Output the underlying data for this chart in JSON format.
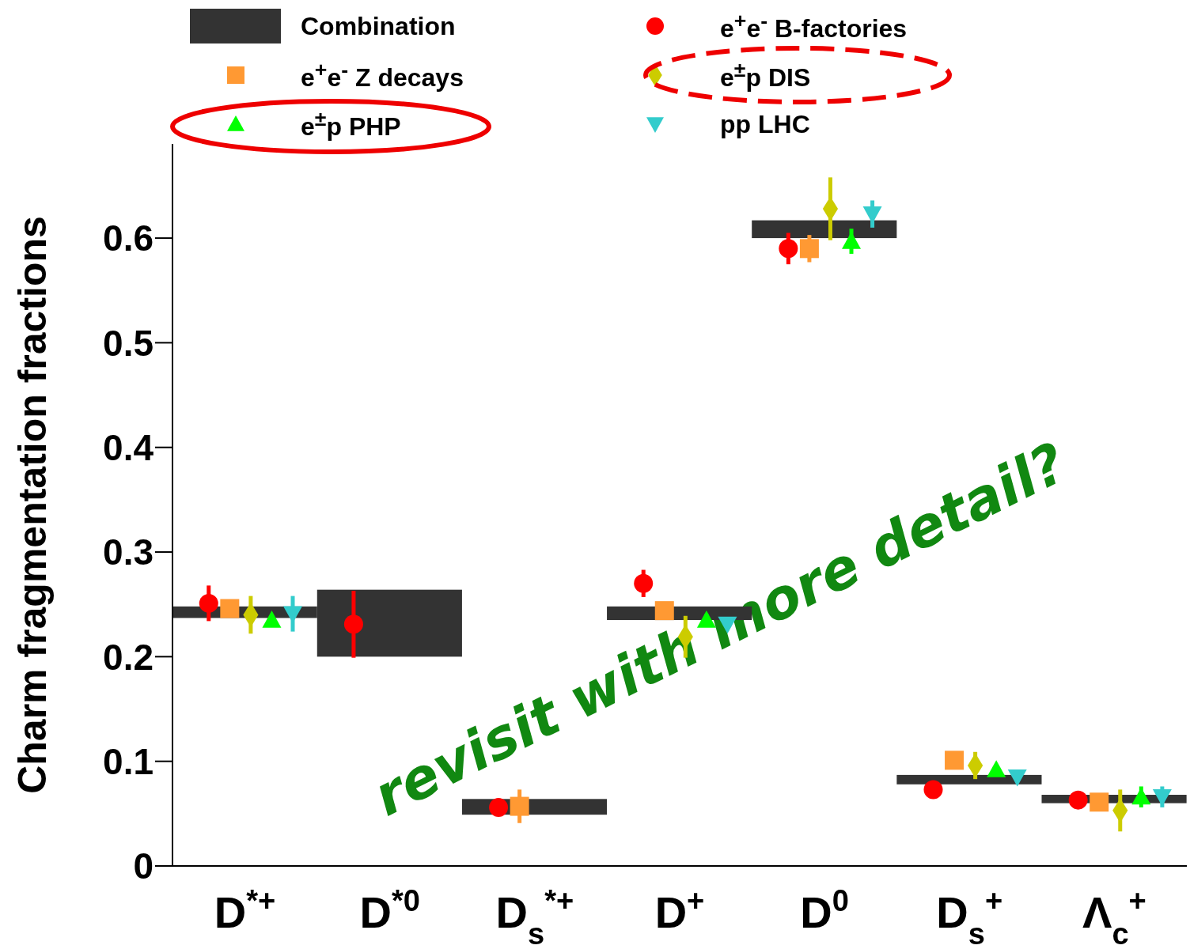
{
  "chart_data": {
    "type": "bar",
    "ylabel": "Charm fragmentation fractions",
    "categories": [
      "D$^{*+}$",
      "D$^{*0}$",
      "D$_{s}$$^{*+}$",
      "D$^{+}$",
      "D$^{0}$",
      "D$_{s}$$^{+}$",
      "Λ$_{c}$$^{+}$"
    ],
    "series": [
      {
        "name": "Combination",
        "color": "#333333",
        "base": [
          0.237,
          0.2,
          0.049,
          0.235,
          0.6,
          0.078,
          0.06
        ],
        "values": [
          0.011,
          0.064,
          0.015,
          0.013,
          0.017,
          0.009,
          0.008
        ]
      },
      {
        "name": "e$^{+}$e$^{-}$ B-factories",
        "type": "scatter",
        "marker": "circle",
        "color": "#ff0000",
        "x": [
          "D$^{*+}$",
          "D$^{*0}$",
          "D$_{s}$$^{*+}$",
          "D$^{+}$",
          "D$^{0}$",
          "D$_{s}$$^{+}$",
          "Λ$_{c}$$^{+}$"
        ],
        "values": [
          0.251,
          0.231,
          0.056,
          0.27,
          0.59,
          0.073,
          0.063
        ],
        "errors": [
          0.017,
          0.032,
          0.004,
          0.013,
          0.015,
          0.004,
          0.004
        ]
      },
      {
        "name": "e$^{+}$e$^{-}$ Z decays",
        "type": "scatter",
        "marker": "square",
        "color": "#ff9933",
        "x": [
          "D$^{*+}$",
          "D$^{*0}$",
          "D$_{s}$$^{*+}$",
          "D$^{+}$",
          "D$^{0}$",
          "D$_{s}$$^{+}$",
          "Λ$_{c}$$^{+}$"
        ],
        "values": [
          0.246,
          null,
          0.057,
          0.244,
          0.59,
          0.101,
          0.061
        ],
        "errors": [
          0.005,
          null,
          0.016,
          0.006,
          0.013,
          0.005,
          0.005
        ]
      },
      {
        "name": "e$^{±}$p DIS",
        "type": "scatter",
        "marker": "diamond",
        "color": "#cccc00",
        "x": [
          "D$^{*+}$",
          "D$^{*0}$",
          "D$_{s}$$^{*+}$",
          "D$^{+}$",
          "D$^{0}$",
          "D$_{s}$$^{+}$",
          "Λ$_{c}$$^{+}$"
        ],
        "values": [
          0.24,
          null,
          null,
          0.219,
          0.628,
          0.096,
          0.053
        ],
        "errors": [
          0.018,
          null,
          null,
          0.02,
          0.03,
          0.013,
          0.02
        ]
      },
      {
        "name": "e$^{±}$p PHP",
        "type": "scatter",
        "marker": "triangle",
        "color": "#00ff00",
        "x": [
          "D$^{*+}$",
          "D$^{*0}$",
          "D$_{s}$$^{*+}$",
          "D$^{+}$",
          "D$^{0}$",
          "D$_{s}$$^{+}$",
          "Λ$_{c}$$^{+}$"
        ],
        "values": [
          0.235,
          null,
          null,
          0.235,
          0.597,
          0.092,
          0.066
        ],
        "errors": [
          0.005,
          null,
          null,
          0.006,
          0.012,
          0.004,
          0.01
        ]
      },
      {
        "name": "pp LHC",
        "type": "scatter",
        "marker": "triangle-down",
        "color": "#33cccc",
        "x": [
          "D$^{*+}$",
          "D$^{*0}$",
          "D$_{s}$$^{*+}$",
          "D$^{+}$",
          "D$^{0}$",
          "D$_{s}$$^{+}$",
          "Λ$_{c}$$^{+}$"
        ],
        "values": [
          0.241,
          null,
          null,
          0.231,
          0.623,
          0.085,
          0.066
        ],
        "errors": [
          0.017,
          null,
          null,
          0.006,
          0.013,
          0.004,
          0.01
        ]
      }
    ],
    "ylim": [
      0,
      0.69
    ],
    "yticks": [
      0,
      0.1,
      0.2,
      0.3,
      0.4,
      0.5,
      0.6
    ],
    "grid": false,
    "legend": "top",
    "annotations": [
      "revisit with more detail?"
    ]
  }
}
